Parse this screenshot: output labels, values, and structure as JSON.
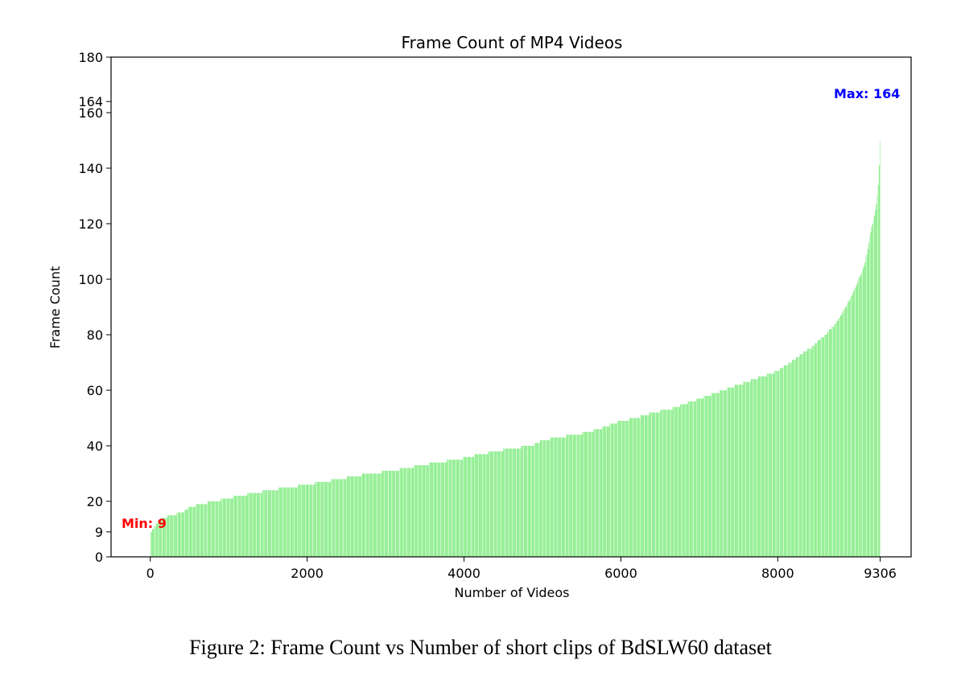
{
  "chart_data": {
    "type": "bar",
    "title": "Frame Count of MP4 Videos",
    "xlabel": "Number of Videos",
    "ylabel": "Frame Count",
    "xlim": [
      -500,
      9700
    ],
    "ylim": [
      0,
      180
    ],
    "x_ticks": [
      0,
      2000,
      4000,
      6000,
      8000,
      9306
    ],
    "y_ticks": [
      0,
      9,
      20,
      40,
      60,
      80,
      100,
      120,
      140,
      160,
      164,
      180
    ],
    "n_videos": 9306,
    "bar_color": "#90ee90",
    "series": [
      {
        "values_sorted_profile": [
          [
            0,
            9
          ],
          [
            100,
            13
          ],
          [
            250,
            15
          ],
          [
            400,
            16
          ],
          [
            500,
            18
          ],
          [
            650,
            19
          ],
          [
            800,
            20
          ],
          [
            1000,
            21
          ],
          [
            1100,
            22
          ],
          [
            1350,
            23
          ],
          [
            1500,
            24
          ],
          [
            1750,
            25
          ],
          [
            2000,
            26
          ],
          [
            2200,
            27
          ],
          [
            2400,
            28
          ],
          [
            2600,
            29
          ],
          [
            2800,
            30
          ],
          [
            3100,
            31
          ],
          [
            3250,
            32
          ],
          [
            3450,
            33
          ],
          [
            3650,
            34
          ],
          [
            3900,
            35
          ],
          [
            4050,
            36
          ],
          [
            4200,
            37
          ],
          [
            4400,
            38
          ],
          [
            4600,
            39
          ],
          [
            4850,
            40
          ],
          [
            5000,
            42
          ],
          [
            5200,
            43
          ],
          [
            5400,
            44
          ],
          [
            5600,
            45
          ],
          [
            5800,
            47
          ],
          [
            6000,
            49
          ],
          [
            6200,
            50
          ],
          [
            6400,
            52
          ],
          [
            6600,
            53
          ],
          [
            6800,
            55
          ],
          [
            7000,
            57
          ],
          [
            7200,
            59
          ],
          [
            7400,
            61
          ],
          [
            7600,
            63
          ],
          [
            7800,
            65
          ],
          [
            8000,
            67
          ],
          [
            8100,
            69
          ],
          [
            8200,
            71
          ],
          [
            8300,
            73
          ],
          [
            8450,
            76
          ],
          [
            8600,
            80
          ],
          [
            8700,
            83
          ],
          [
            8800,
            87
          ],
          [
            8900,
            92
          ],
          [
            9000,
            98
          ],
          [
            9100,
            105
          ],
          [
            9150,
            112
          ],
          [
            9200,
            120
          ],
          [
            9250,
            126
          ],
          [
            9280,
            135
          ],
          [
            9300,
            150
          ],
          [
            9306,
            164
          ]
        ]
      }
    ],
    "annotations": [
      {
        "text": "Min: 9",
        "color": "#ff0000"
      },
      {
        "text": "Max: 164",
        "color": "#0000ff"
      }
    ]
  },
  "caption": "Figure 2: Frame Count vs Number of short clips of BdSLW60 dataset"
}
